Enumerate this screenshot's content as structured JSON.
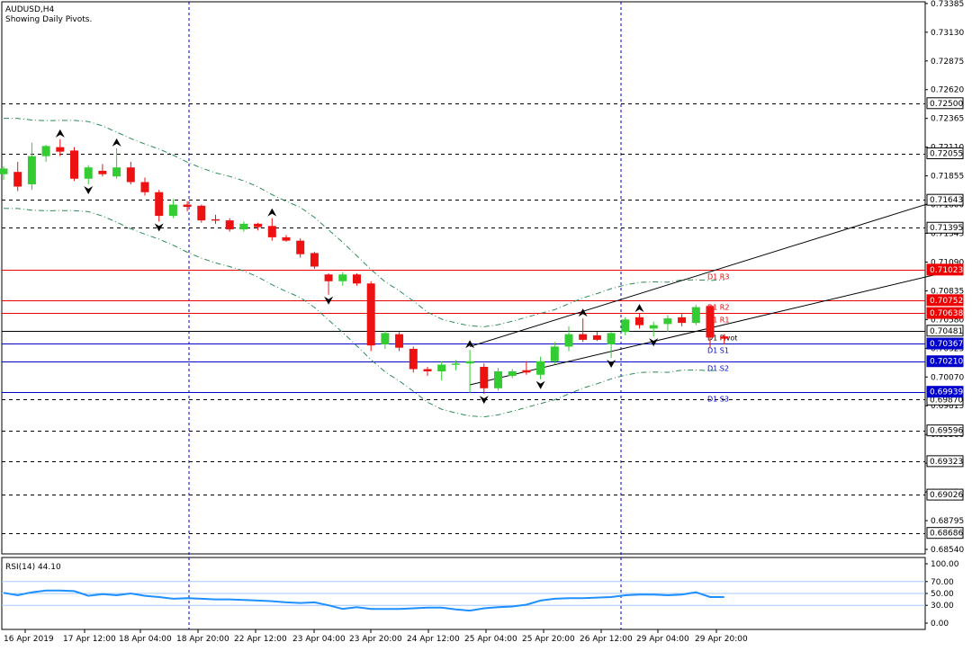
{
  "header": {
    "symbol": "AUDUSD,H4",
    "subtitle": "Showing Daily Pivots."
  },
  "rsi": {
    "label": "RSI(14) 44.10",
    "levels": [
      "100.00",
      "70.00",
      "50.00",
      "30.00",
      "0.00"
    ],
    "line_color": "#1e90ff"
  },
  "colors": {
    "bull": "#33cc33",
    "bear": "#ee1111",
    "axis": "#0000cc",
    "resistance": "#ee0000",
    "support": "#0000cc",
    "pivot": "#000000",
    "grid": "#000066",
    "bands": "#2e8b57"
  },
  "chart_data": {
    "type": "candlestick",
    "title": "AUDUSD,H4",
    "subtitle": "Showing Daily Pivots.",
    "ylim": [
      0.685,
      0.734
    ],
    "y_ticks": [
      "0.73385",
      "0.73130",
      "0.72875",
      "0.72620",
      "0.72365",
      "0.72110",
      "0.71855",
      "0.71600",
      "0.71345",
      "0.71090",
      "0.70835",
      "0.70580",
      "0.70325",
      "0.70070",
      "0.69815",
      "0.69560",
      "0.69305",
      "0.69050",
      "0.68795",
      "0.68540"
    ],
    "x_tick_labels": [
      "16 Apr 2019",
      "17 Apr 12:00",
      "18 Apr 04:00",
      "18 Apr 20:00",
      "22 Apr 12:00",
      "23 Apr 04:00",
      "23 Apr 20:00",
      "24 Apr 12:00",
      "25 Apr 04:00",
      "25 Apr 20:00",
      "26 Apr 12:00",
      "29 Apr 04:00",
      "29 Apr 20:00"
    ],
    "pivot_levels": [
      {
        "name": "D1 R3",
        "value": 0.71023,
        "label": "0.71023",
        "kind": "resistance"
      },
      {
        "name": "D1 R2",
        "value": 0.70752,
        "label": "0.70752",
        "kind": "resistance"
      },
      {
        "name": "D1 R1",
        "value": 0.70638,
        "label": "0.70638",
        "kind": "resistance"
      },
      {
        "name": "D1 Pivot",
        "value": 0.70481,
        "label": "0.70481",
        "kind": "pivot"
      },
      {
        "name": "D1 S1",
        "value": 0.70367,
        "label": "0.70367",
        "kind": "support"
      },
      {
        "name": "D1 S2",
        "value": 0.7021,
        "label": "0.70210",
        "kind": "support"
      },
      {
        "name": "D1 S3",
        "value": 0.69939,
        "label": "0.69939",
        "kind": "support"
      }
    ],
    "horizontal_levels": [
      {
        "value": 0.725,
        "label": "0.72500"
      },
      {
        "value": 0.72055,
        "label": "0.72055"
      },
      {
        "value": 0.71643,
        "label": "0.71643"
      },
      {
        "value": 0.71395,
        "label": "0.71395"
      },
      {
        "value": 0.6987,
        "label": "0.69870"
      },
      {
        "value": 0.69596,
        "label": "0.69596"
      },
      {
        "value": 0.69323,
        "label": "0.69323"
      },
      {
        "value": 0.69026,
        "label": "0.69026"
      },
      {
        "value": 0.68686,
        "label": "0.68686"
      }
    ],
    "candles": [
      {
        "o": 0.7187,
        "h": 0.7194,
        "l": 0.7182,
        "c": 0.7192
      },
      {
        "o": 0.7189,
        "h": 0.7198,
        "l": 0.7172,
        "c": 0.7176
      },
      {
        "o": 0.7178,
        "h": 0.7215,
        "l": 0.7173,
        "c": 0.7203
      },
      {
        "o": 0.7203,
        "h": 0.7213,
        "l": 0.7198,
        "c": 0.7212
      },
      {
        "o": 0.7211,
        "h": 0.7218,
        "l": 0.7203,
        "c": 0.7207
      },
      {
        "o": 0.7208,
        "h": 0.7211,
        "l": 0.7181,
        "c": 0.7183
      },
      {
        "o": 0.7183,
        "h": 0.7195,
        "l": 0.7178,
        "c": 0.7193
      },
      {
        "o": 0.719,
        "h": 0.7196,
        "l": 0.7185,
        "c": 0.7187
      },
      {
        "o": 0.7185,
        "h": 0.721,
        "l": 0.7183,
        "c": 0.7193
      },
      {
        "o": 0.7193,
        "h": 0.7198,
        "l": 0.7178,
        "c": 0.718
      },
      {
        "o": 0.718,
        "h": 0.7184,
        "l": 0.7168,
        "c": 0.7171
      },
      {
        "o": 0.7171,
        "h": 0.7173,
        "l": 0.7145,
        "c": 0.715
      },
      {
        "o": 0.715,
        "h": 0.7165,
        "l": 0.7148,
        "c": 0.716
      },
      {
        "o": 0.716,
        "h": 0.7163,
        "l": 0.7154,
        "c": 0.7158
      },
      {
        "o": 0.7159,
        "h": 0.716,
        "l": 0.7144,
        "c": 0.7146
      },
      {
        "o": 0.7147,
        "h": 0.7151,
        "l": 0.7143,
        "c": 0.7146
      },
      {
        "o": 0.7146,
        "h": 0.7148,
        "l": 0.7136,
        "c": 0.7138
      },
      {
        "o": 0.7138,
        "h": 0.7145,
        "l": 0.7136,
        "c": 0.7143
      },
      {
        "o": 0.7143,
        "h": 0.7144,
        "l": 0.7137,
        "c": 0.714
      },
      {
        "o": 0.7141,
        "h": 0.7148,
        "l": 0.7128,
        "c": 0.7131
      },
      {
        "o": 0.7131,
        "h": 0.7133,
        "l": 0.7127,
        "c": 0.7128
      },
      {
        "o": 0.7128,
        "h": 0.713,
        "l": 0.7113,
        "c": 0.7116
      },
      {
        "o": 0.7117,
        "h": 0.7118,
        "l": 0.7103,
        "c": 0.7105
      },
      {
        "o": 0.7098,
        "h": 0.7099,
        "l": 0.708,
        "c": 0.7092
      },
      {
        "o": 0.7092,
        "h": 0.71,
        "l": 0.7088,
        "c": 0.7098
      },
      {
        "o": 0.7098,
        "h": 0.7099,
        "l": 0.7088,
        "c": 0.709
      },
      {
        "o": 0.709,
        "h": 0.7092,
        "l": 0.703,
        "c": 0.7035
      },
      {
        "o": 0.7036,
        "h": 0.7048,
        "l": 0.7032,
        "c": 0.7046
      },
      {
        "o": 0.7045,
        "h": 0.7047,
        "l": 0.703,
        "c": 0.7033
      },
      {
        "o": 0.7032,
        "h": 0.7034,
        "l": 0.7011,
        "c": 0.7014
      },
      {
        "o": 0.7014,
        "h": 0.7016,
        "l": 0.7008,
        "c": 0.7012
      },
      {
        "o": 0.7012,
        "h": 0.7021,
        "l": 0.7004,
        "c": 0.7018
      },
      {
        "o": 0.7018,
        "h": 0.7022,
        "l": 0.7013,
        "c": 0.7019
      },
      {
        "o": 0.7019,
        "h": 0.7031,
        "l": 0.6993,
        "c": 0.7021
      },
      {
        "o": 0.7016,
        "h": 0.7019,
        "l": 0.6992,
        "c": 0.6997
      },
      {
        "o": 0.6997,
        "h": 0.7015,
        "l": 0.6995,
        "c": 0.7012
      },
      {
        "o": 0.7008,
        "h": 0.7014,
        "l": 0.7006,
        "c": 0.7012
      },
      {
        "o": 0.7013,
        "h": 0.7021,
        "l": 0.7009,
        "c": 0.7011
      },
      {
        "o": 0.7009,
        "h": 0.7025,
        "l": 0.7005,
        "c": 0.7021
      },
      {
        "o": 0.7021,
        "h": 0.7038,
        "l": 0.7018,
        "c": 0.7034
      },
      {
        "o": 0.7034,
        "h": 0.7052,
        "l": 0.703,
        "c": 0.7045
      },
      {
        "o": 0.7045,
        "h": 0.7059,
        "l": 0.7038,
        "c": 0.704
      },
      {
        "o": 0.7044,
        "h": 0.7047,
        "l": 0.7039,
        "c": 0.704
      },
      {
        "o": 0.7036,
        "h": 0.7047,
        "l": 0.7024,
        "c": 0.7046
      },
      {
        "o": 0.7047,
        "h": 0.706,
        "l": 0.7044,
        "c": 0.7058
      },
      {
        "o": 0.706,
        "h": 0.7063,
        "l": 0.705,
        "c": 0.7053
      },
      {
        "o": 0.705,
        "h": 0.7056,
        "l": 0.7043,
        "c": 0.7053
      },
      {
        "o": 0.7054,
        "h": 0.7062,
        "l": 0.7047,
        "c": 0.7059
      },
      {
        "o": 0.706,
        "h": 0.7063,
        "l": 0.7052,
        "c": 0.7055
      },
      {
        "o": 0.7055,
        "h": 0.7071,
        "l": 0.7053,
        "c": 0.7069
      },
      {
        "o": 0.707,
        "h": 0.7071,
        "l": 0.7033,
        "c": 0.7042
      },
      {
        "o": 0.7043,
        "h": 0.7045,
        "l": 0.7036,
        "c": 0.7041
      }
    ],
    "rsi_values": [
      51,
      47,
      52,
      55,
      55,
      54,
      46,
      49,
      47,
      50,
      46,
      44,
      41,
      42,
      41,
      40,
      40,
      39,
      38,
      37,
      35,
      34,
      35,
      30,
      24,
      27,
      24,
      24,
      24,
      25,
      26,
      26,
      23,
      21,
      25,
      27,
      28,
      31,
      38,
      41,
      42,
      42,
      43,
      44,
      47,
      48,
      48,
      47,
      48,
      52,
      44,
      44
    ],
    "trend_lines": [
      {
        "from": [
          33,
          0.7034
        ],
        "to": [
          66,
          0.7163
        ]
      },
      {
        "from": [
          33,
          0.7
        ],
        "to": [
          66,
          0.7098
        ]
      }
    ]
  }
}
